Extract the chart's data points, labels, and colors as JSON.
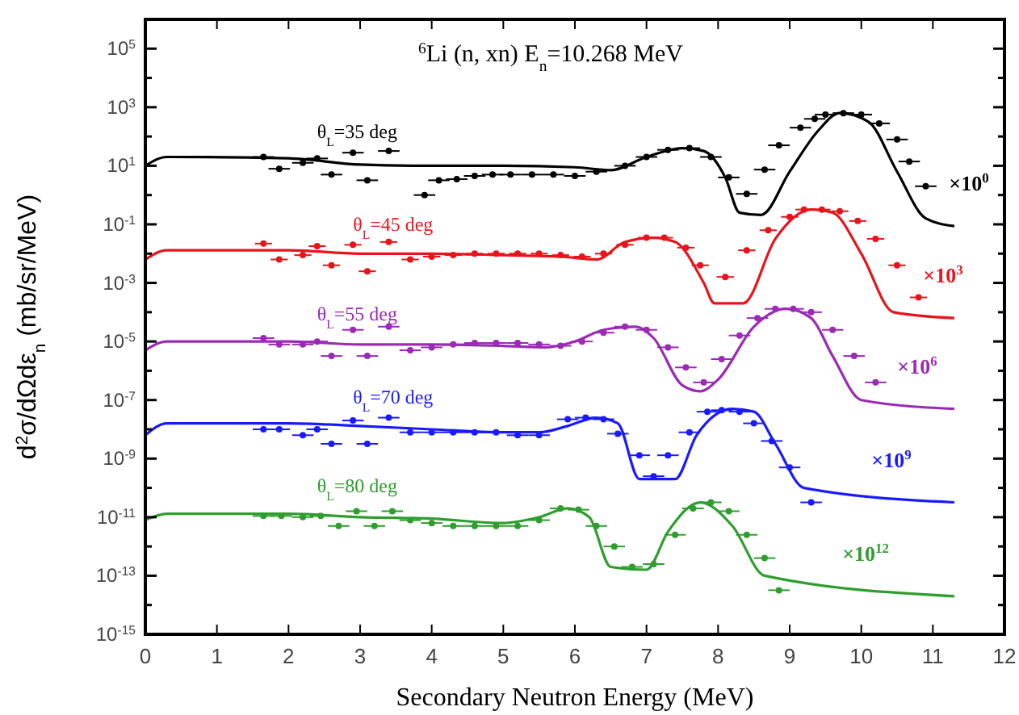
{
  "chart_data": {
    "type": "line",
    "title": "$^{6}$Li (n, xn)   E$_{n}$=10.268 MeV",
    "xlabel": "Secondary Neutron Energy (MeV)",
    "ylabel": "d$^{2}$σ/dΩdε$_{n}$ (mb/sr/MeV)",
    "log": "y",
    "grid": false,
    "xlim": [
      0,
      12
    ],
    "xticks": [
      0,
      1,
      2,
      3,
      4,
      5,
      6,
      7,
      8,
      9,
      10,
      11,
      12
    ],
    "ylim": [
      1e-15,
      1000000.0
    ],
    "yticks": [
      {
        "value": 1e-15,
        "label": "10$^{-15}$"
      },
      {
        "value": 1e-14,
        "label": null
      },
      {
        "value": 1e-13,
        "label": "10$^{-13}$"
      },
      {
        "value": 1e-12,
        "label": null
      },
      {
        "value": 1e-11,
        "label": "10$^{-11}$"
      },
      {
        "value": 1e-10,
        "label": null
      },
      {
        "value": 1e-09,
        "label": "10$^{-9}$"
      },
      {
        "value": 1e-08,
        "label": null
      },
      {
        "value": 1e-07,
        "label": "10$^{-7}$"
      },
      {
        "value": 1e-06,
        "label": null
      },
      {
        "value": 1e-05,
        "label": "10$^{-5}$"
      },
      {
        "value": 0.0001,
        "label": null
      },
      {
        "value": 0.001,
        "label": "10$^{-3}$"
      },
      {
        "value": 0.01,
        "label": null
      },
      {
        "value": 0.1,
        "label": "10$^{-1}$"
      },
      {
        "value": 1,
        "label": null
      },
      {
        "value": 10,
        "label": "10$^{1}$"
      },
      {
        "value": 100,
        "label": null
      },
      {
        "value": 1000,
        "label": "10$^{3}$"
      },
      {
        "value": 10000.0,
        "label": null
      },
      {
        "value": 100000.0,
        "label": "10$^{5}$"
      }
    ],
    "series": [
      {
        "name": "θ$_{L}$=35 deg",
        "color": "#000000",
        "marker": "none",
        "x": [
          0,
          0.3,
          2,
          3,
          4,
          5,
          6,
          6.5,
          7,
          7.5,
          7.8,
          8.1,
          8.3,
          8.6,
          9,
          9.4,
          9.7,
          10.1,
          10.5,
          10.9,
          11.3
        ],
        "values": [
          10,
          20,
          18,
          11,
          10,
          10,
          8.9,
          7.1,
          20,
          40,
          32,
          4,
          0.25,
          0.21,
          6.3,
          160,
          630,
          320,
          6.3,
          0.16,
          0.087
        ]
      },
      {
        "type": "scatter",
        "color": "#000000",
        "marker": "circle",
        "x": [
          1.65,
          1.87,
          2.2,
          2.4,
          2.6,
          2.9,
          3.1,
          3.4,
          3.9,
          4.1,
          4.35,
          4.6,
          4.85,
          5.1,
          5.4,
          5.7,
          6.0,
          6.3,
          6.7,
          7.0,
          7.3,
          7.6,
          7.9,
          8.15,
          8.4,
          8.65,
          8.85,
          9.15,
          9.35,
          9.5,
          9.75,
          10.0,
          10.25,
          10.5,
          10.67,
          10.9
        ],
        "values": [
          20,
          7.9,
          12.6,
          17.8,
          5,
          28,
          3.2,
          32,
          1,
          3.2,
          3.5,
          4.5,
          5,
          5,
          5,
          5,
          4.5,
          6.3,
          10,
          20,
          35,
          40,
          20,
          4,
          1.1,
          7.4,
          50,
          200,
          400,
          560,
          630,
          560,
          280,
          79,
          14,
          2
        ],
        "xerrors": [
          0.15,
          0.15,
          0.15,
          0.15,
          0.15,
          0.15,
          0.15,
          0.15,
          0.15,
          0.15,
          0.15,
          0.15,
          0.15,
          0.15,
          0.15,
          0.15,
          0.15,
          0.15,
          0.15,
          0.15,
          0.15,
          0.15,
          0.15,
          0.15,
          0.15,
          0.15,
          0.15,
          0.15,
          0.15,
          0.15,
          0.15,
          0.15,
          0.15,
          0.15,
          0.15,
          0.15
        ]
      },
      {
        "name": "θ$_{L}$=45 deg",
        "color": "#e8141b",
        "marker": "none",
        "x": [
          0,
          0.3,
          2,
          3,
          4,
          5,
          5.8,
          6.3,
          6.7,
          7.1,
          7.4,
          7.8,
          7.95,
          8.35,
          8.8,
          9.3,
          9.6,
          10.0,
          10.45,
          11.3
        ],
        "values": [
          0.0063,
          0.013,
          0.013,
          0.01,
          0.01,
          0.0089,
          0.0079,
          0.0063,
          0.025,
          0.035,
          0.025,
          0.001,
          0.0002,
          0.0002,
          0.032,
          0.32,
          0.25,
          0.01,
          0.0001,
          6.3e-05
        ]
      },
      {
        "type": "scatter",
        "color": "#e8141b",
        "marker": "circle",
        "x": [
          1.65,
          1.87,
          2.2,
          2.4,
          2.6,
          2.9,
          3.1,
          3.4,
          3.7,
          4.0,
          4.3,
          4.6,
          4.9,
          5.2,
          5.5,
          5.8,
          6.1,
          6.4,
          6.7,
          7.0,
          7.25,
          7.55,
          7.75,
          8.1,
          8.4,
          8.7,
          9.0,
          9.2,
          9.45,
          9.7,
          9.95,
          10.2,
          10.5,
          10.8
        ],
        "values": [
          0.022,
          0.0063,
          0.0089,
          0.018,
          0.004,
          0.02,
          0.0025,
          0.025,
          0.0063,
          0.0079,
          0.0089,
          0.01,
          0.01,
          0.01,
          0.01,
          0.0089,
          0.0079,
          0.01,
          0.02,
          0.035,
          0.035,
          0.016,
          0.004,
          0.0016,
          0.013,
          0.063,
          0.18,
          0.32,
          0.32,
          0.28,
          0.13,
          0.032,
          0.004,
          0.00032
        ],
        "xerrors": [
          0.12,
          0.12,
          0.12,
          0.12,
          0.12,
          0.12,
          0.12,
          0.12,
          0.12,
          0.12,
          0.12,
          0.12,
          0.12,
          0.12,
          0.12,
          0.12,
          0.12,
          0.12,
          0.12,
          0.12,
          0.12,
          0.12,
          0.12,
          0.12,
          0.12,
          0.12,
          0.12,
          0.12,
          0.12,
          0.12,
          0.12,
          0.12,
          0.12,
          0.12
        ]
      },
      {
        "name": "θ$_{L}$=55 deg",
        "color": "#9b2ab5",
        "marker": "none",
        "x": [
          0,
          0.3,
          2,
          3,
          4,
          5,
          5.6,
          6.0,
          6.4,
          6.85,
          7.1,
          7.5,
          7.75,
          8.0,
          8.5,
          8.95,
          9.3,
          9.6,
          10.0,
          11.3
        ],
        "values": [
          5e-06,
          1e-05,
          1e-05,
          7.9e-06,
          7.9e-06,
          7.1e-06,
          6.3e-06,
          1e-05,
          2.5e-05,
          3.2e-05,
          1.3e-05,
          3.2e-07,
          2e-07,
          5e-07,
          3.2e-05,
          0.00013,
          6.3e-05,
          3.2e-06,
          1e-07,
          5e-08
        ]
      },
      {
        "type": "scatter",
        "color": "#9b2ab5",
        "marker": "circle",
        "x": [
          1.65,
          1.87,
          2.2,
          2.4,
          2.6,
          2.9,
          3.1,
          3.4,
          3.7,
          4.0,
          4.3,
          4.6,
          4.9,
          5.2,
          5.5,
          5.8,
          6.1,
          6.4,
          6.7,
          7.0,
          7.3,
          7.55,
          7.8,
          8.05,
          8.3,
          8.55,
          8.8,
          9.05,
          9.3,
          9.6,
          9.9,
          10.2
        ],
        "values": [
          1.3e-05,
          7.9e-06,
          7.9e-06,
          1e-05,
          3.2e-06,
          2.5e-05,
          3.2e-06,
          3.2e-05,
          5e-06,
          6.3e-06,
          7.9e-06,
          8.9e-06,
          8.9e-06,
          8.9e-06,
          7.9e-06,
          7.1e-06,
          1e-05,
          2e-05,
          3.2e-05,
          2.5e-05,
          6.3e-06,
          1.3e-06,
          4e-07,
          2.5e-06,
          1.6e-05,
          6.3e-05,
          0.00013,
          0.00013,
          0.0001,
          2.5e-05,
          3.2e-06,
          4e-07
        ],
        "xerrors": [
          0.15,
          0.15,
          0.15,
          0.15,
          0.15,
          0.15,
          0.15,
          0.15,
          0.15,
          0.15,
          0.15,
          0.15,
          0.15,
          0.15,
          0.15,
          0.15,
          0.15,
          0.15,
          0.15,
          0.15,
          0.15,
          0.15,
          0.15,
          0.15,
          0.15,
          0.15,
          0.15,
          0.15,
          0.15,
          0.15,
          0.15,
          0.15
        ]
      },
      {
        "name": "θ$_{L}$=70 deg",
        "color": "#1a1aff",
        "marker": "none",
        "x": [
          0,
          0.3,
          2,
          3,
          4,
          5,
          5.5,
          5.9,
          6.3,
          6.6,
          6.9,
          7.4,
          7.7,
          8.2,
          8.5,
          8.8,
          9.2,
          11.3
        ],
        "values": [
          6.3e-09,
          1.6e-08,
          1.6e-08,
          1.3e-08,
          1e-08,
          7.9e-09,
          7.9e-09,
          1.3e-08,
          2.5e-08,
          1.6e-08,
          2e-10,
          2e-10,
          6.3e-09,
          5e-08,
          4e-08,
          3.2e-09,
          1e-10,
          3.2e-11
        ]
      },
      {
        "type": "scatter",
        "color": "#1a1aff",
        "marker": "circle",
        "x": [
          1.65,
          1.87,
          2.2,
          2.4,
          2.6,
          2.9,
          3.1,
          3.4,
          3.7,
          4.0,
          4.3,
          4.6,
          4.9,
          5.2,
          5.5,
          5.9,
          6.15,
          6.4,
          6.6,
          6.9,
          7.1,
          7.3,
          7.6,
          7.85,
          8.05,
          8.3,
          8.5,
          8.75,
          9.0,
          9.3
        ],
        "values": [
          1e-08,
          1e-08,
          6.3e-09,
          1e-08,
          3.2e-09,
          2e-08,
          3.2e-09,
          2.5e-08,
          7.9e-09,
          7.9e-09,
          7.9e-09,
          7.9e-09,
          7.9e-09,
          6.3e-09,
          6.3e-09,
          2.2e-08,
          2.5e-08,
          2.2e-08,
          7.1e-09,
          1.3e-09,
          2.5e-10,
          1.3e-09,
          7.9e-09,
          4e-08,
          4.5e-08,
          4e-08,
          1.6e-08,
          4e-09,
          5e-10,
          3.2e-11
        ],
        "xerrors": [
          0.15,
          0.15,
          0.15,
          0.15,
          0.15,
          0.15,
          0.15,
          0.15,
          0.15,
          0.15,
          0.15,
          0.15,
          0.15,
          0.15,
          0.15,
          0.15,
          0.15,
          0.15,
          0.15,
          0.15,
          0.15,
          0.15,
          0.15,
          0.15,
          0.15,
          0.15,
          0.15,
          0.15,
          0.15,
          0.15
        ]
      },
      {
        "name": "θ$_{L}$=80 deg",
        "color": "#2e9e2e",
        "marker": "none",
        "x": [
          0,
          0.3,
          2,
          3,
          4,
          5,
          5.5,
          5.9,
          6.2,
          6.5,
          7.0,
          7.3,
          7.75,
          8.2,
          8.65,
          11.3
        ],
        "values": [
          7.9e-12,
          1.3e-11,
          1.3e-11,
          1e-11,
          8.9e-12,
          6.3e-12,
          1e-11,
          2e-11,
          1e-11,
          2e-13,
          1.6e-13,
          3.2e-12,
          3.2e-11,
          5e-12,
          1e-13,
          2e-14
        ]
      },
      {
        "type": "scatter",
        "color": "#2e9e2e",
        "marker": "circle",
        "x": [
          1.65,
          1.9,
          2.2,
          2.45,
          2.7,
          2.95,
          3.2,
          3.45,
          3.7,
          4.0,
          4.3,
          4.6,
          4.9,
          5.2,
          5.5,
          5.8,
          6.05,
          6.3,
          6.55,
          6.8,
          7.1,
          7.4,
          7.65,
          7.9,
          8.15,
          8.4,
          8.65,
          8.85
        ],
        "values": [
          1.1e-11,
          1.1e-11,
          1e-11,
          1.1e-11,
          5e-12,
          1.6e-11,
          5e-12,
          1.6e-11,
          7.9e-12,
          6.3e-12,
          5e-12,
          5e-12,
          5e-12,
          5e-12,
          7.9e-12,
          2e-11,
          1.8e-11,
          5e-12,
          1e-12,
          2e-13,
          2.5e-13,
          2.5e-12,
          2e-11,
          3.2e-11,
          1.6e-11,
          2.5e-12,
          4e-13,
          3.2e-14
        ],
        "xerrors": [
          0.15,
          0.15,
          0.15,
          0.15,
          0.15,
          0.15,
          0.15,
          0.15,
          0.15,
          0.15,
          0.15,
          0.15,
          0.15,
          0.15,
          0.15,
          0.15,
          0.15,
          0.15,
          0.15,
          0.15,
          0.15,
          0.15,
          0.15,
          0.15,
          0.15,
          0.15,
          0.15,
          0.15
        ]
      }
    ],
    "annotations": [
      "×10$^{0}$",
      "×10$^{3}$",
      "×10$^{6}$",
      "×10$^{9}$",
      "×10$^{12}$"
    ]
  }
}
